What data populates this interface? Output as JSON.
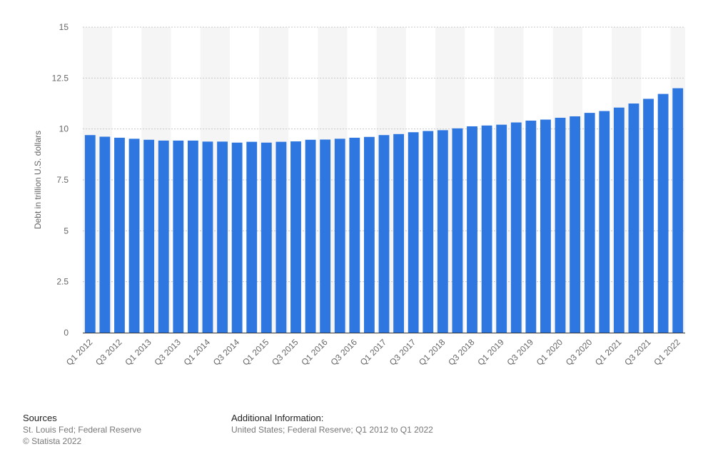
{
  "chart_data": {
    "type": "bar",
    "title": "",
    "xlabel": "",
    "ylabel": "Debt in trillion U.S. dollars",
    "ylim": [
      0,
      15
    ],
    "yticks": [
      0,
      2.5,
      5,
      7.5,
      10,
      12.5,
      15
    ],
    "ytick_labels": [
      "0",
      "2.5",
      "5",
      "7.5",
      "10",
      "12.5",
      "15"
    ],
    "grid": true,
    "bar_color": "#2e76e0",
    "categories": [
      "Q1 2012",
      "Q2 2012",
      "Q3 2012",
      "Q4 2012",
      "Q1 2013",
      "Q2 2013",
      "Q3 2013",
      "Q4 2013",
      "Q1 2014",
      "Q2 2014",
      "Q3 2014",
      "Q4 2014",
      "Q1 2015",
      "Q2 2015",
      "Q3 2015",
      "Q4 2015",
      "Q1 2016",
      "Q2 2016",
      "Q3 2016",
      "Q4 2016",
      "Q1 2017",
      "Q2 2017",
      "Q3 2017",
      "Q4 2017",
      "Q1 2018",
      "Q2 2018",
      "Q3 2018",
      "Q4 2018",
      "Q1 2019",
      "Q2 2019",
      "Q3 2019",
      "Q4 2019",
      "Q1 2020",
      "Q2 2020",
      "Q3 2020",
      "Q4 2020",
      "Q1 2021",
      "Q2 2021",
      "Q3 2021",
      "Q4 2021",
      "Q1 2022"
    ],
    "visible_tick_labels": [
      "Q1 2012",
      "Q3 2012",
      "Q1 2013",
      "Q3 2013",
      "Q1 2014",
      "Q3 2014",
      "Q1 2015",
      "Q3 2015",
      "Q1 2016",
      "Q3 2016",
      "Q1 2017",
      "Q3 2017",
      "Q1 2018",
      "Q3 2018",
      "Q1 2019",
      "Q3 2019",
      "Q1 2020",
      "Q3 2020",
      "Q1 2021",
      "Q3 2021",
      "Q1 2022"
    ],
    "values": [
      9.7,
      9.62,
      9.57,
      9.52,
      9.47,
      9.43,
      9.43,
      9.43,
      9.38,
      9.38,
      9.33,
      9.37,
      9.33,
      9.37,
      9.39,
      9.47,
      9.48,
      9.52,
      9.57,
      9.61,
      9.7,
      9.75,
      9.84,
      9.9,
      9.94,
      10.03,
      10.13,
      10.17,
      10.21,
      10.32,
      10.41,
      10.46,
      10.55,
      10.62,
      10.79,
      10.88,
      11.05,
      11.25,
      11.48,
      11.72,
      12.0
    ]
  },
  "footer": {
    "sources_heading": "Sources",
    "sources_line1": "St. Louis Fed; Federal Reserve",
    "sources_line2": "© Statista 2022",
    "additional_heading": "Additional Information:",
    "additional_line1": "United States; Federal Reserve; Q1 2012 to Q1 2022"
  }
}
